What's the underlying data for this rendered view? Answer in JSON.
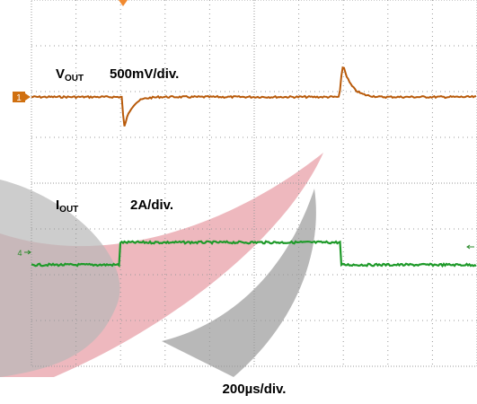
{
  "channels": [
    {
      "symbol": "V",
      "subscript": "OUT",
      "scale": "500mV/div.",
      "marker": "1"
    },
    {
      "symbol": "I",
      "subscript": "OUT",
      "scale": "2A/div.",
      "marker": "4"
    }
  ],
  "timebase": "200µs/div."
}
